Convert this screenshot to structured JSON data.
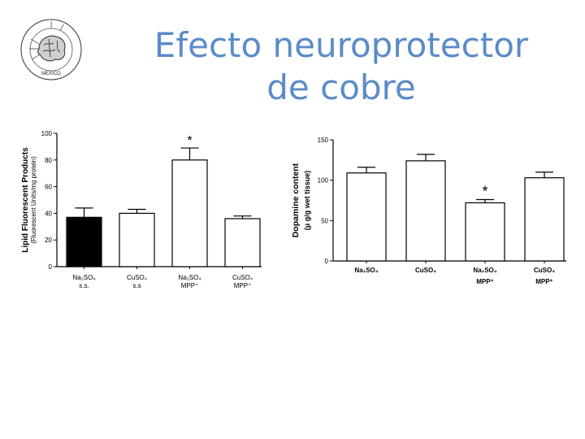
{
  "slide": {
    "title_line1": "Efecto neuroprotector",
    "title_line2": "de cobre",
    "title_color": "#5b8bc9",
    "logo_icon": "brain-seal-logo",
    "logo_text": "MEXICO"
  },
  "chart_data": [
    {
      "type": "bar",
      "ylabel": "Lipid Fluorescent Products",
      "ylabel_sub": "(Fluorescent Units/mg protein)",
      "ylim": [
        0,
        100
      ],
      "yticks": [
        0,
        20,
        40,
        60,
        80,
        100
      ],
      "categories": [
        {
          "line1": "Na₂SO₄",
          "line2": "s.s."
        },
        {
          "line1": "CuSO₄",
          "line2": "s.s"
        },
        {
          "line1": "Na₂SO₄",
          "line2": "MPP⁺"
        },
        {
          "line1": "CuSO₄",
          "line2": "MPP⁺"
        }
      ],
      "values": [
        37,
        40,
        80,
        36
      ],
      "errors": [
        7,
        3,
        9,
        2
      ],
      "fills": [
        "#000000",
        "#ffffff",
        "#ffffff",
        "#ffffff"
      ],
      "significance": [
        "",
        "",
        "*",
        ""
      ],
      "grid": false
    },
    {
      "type": "bar",
      "ylabel": "Dopamine content",
      "ylabel_sub": "(μ g/g wet tissue)",
      "ylim": [
        0,
        150
      ],
      "yticks": [
        0,
        50,
        100,
        150
      ],
      "categories": [
        {
          "line1": "Na₂SO₄",
          "line2": ""
        },
        {
          "line1": "CuSO₄",
          "line2": ""
        },
        {
          "line1": "Na₂SO₄",
          "line2": "MPP⁺"
        },
        {
          "line1": "CuSO₄",
          "line2": "MPP⁺"
        }
      ],
      "values": [
        109,
        124,
        72,
        103
      ],
      "errors": [
        7,
        8,
        4,
        7
      ],
      "fills": [
        "#ffffff",
        "#ffffff",
        "#ffffff",
        "#ffffff"
      ],
      "significance": [
        "",
        "",
        "*",
        ""
      ],
      "grid": false
    }
  ]
}
